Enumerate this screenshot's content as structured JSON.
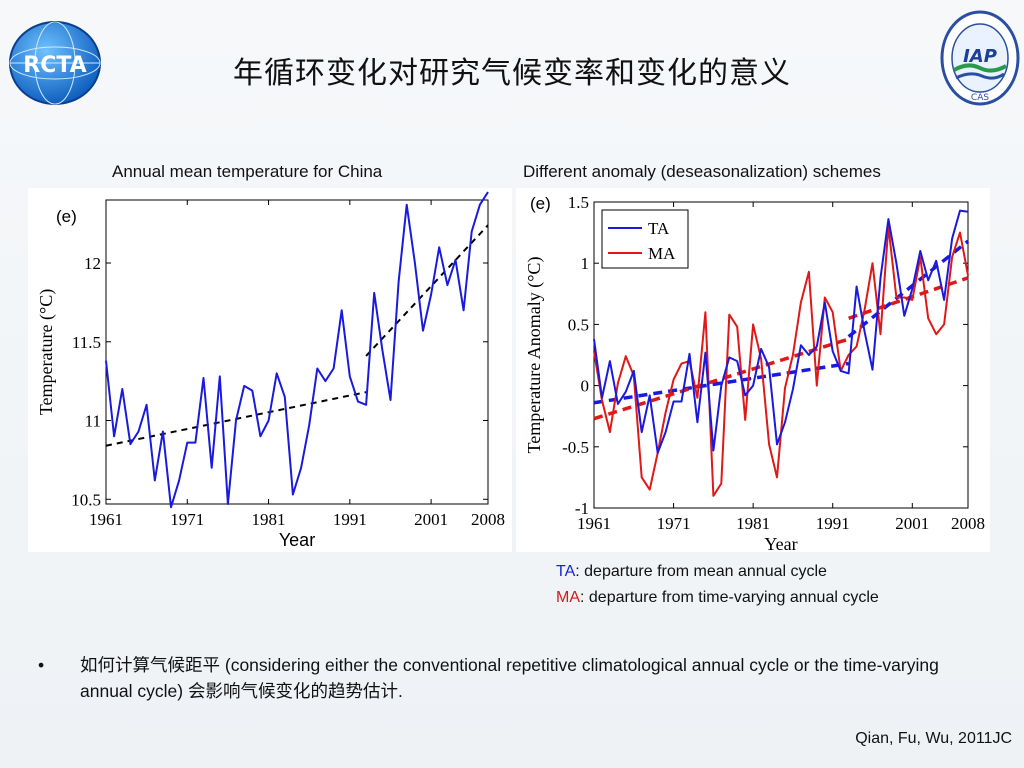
{
  "slide": {
    "title": "年循环变化对研究气候变率和变化的意义",
    "bullet": "如何计算气候距平 (considering either the conventional repetitive climatological annual cycle or the time-varying annual cycle) 会影响气候变化的趋势估计.",
    "citation": "Qian, Fu, Wu, 2011JC",
    "ta_note": {
      "term": "TA",
      "text": ": departure from mean annual cycle"
    },
    "ma_note": {
      "term": "MA",
      "text": ": departure from time-varying annual cycle"
    },
    "logos": {
      "left": "RCTA",
      "right": "IAP",
      "right_ring": "CAS"
    }
  },
  "chart_data": [
    {
      "type": "line",
      "subtitle": "Annual mean temperature for China",
      "panel_label": "(e)",
      "xlabel": "Year",
      "ylabel": "Temperature (°C)",
      "xlim": [
        1961,
        2008
      ],
      "ylim": [
        10.47,
        12.4
      ],
      "xticks": [
        1961,
        1971,
        1981,
        1991,
        2001,
        2008
      ],
      "yticks": [
        10.5,
        11,
        11.5,
        12
      ],
      "ytick_labels": [
        "10.5",
        "11",
        "11.5",
        "12"
      ],
      "color": "#1a1adf",
      "x": [
        1961,
        1962,
        1963,
        1964,
        1965,
        1966,
        1967,
        1968,
        1969,
        1970,
        1971,
        1972,
        1973,
        1974,
        1975,
        1976,
        1977,
        1978,
        1979,
        1980,
        1981,
        1982,
        1983,
        1984,
        1985,
        1986,
        1987,
        1988,
        1989,
        1990,
        1991,
        1992,
        1993,
        1994,
        1995,
        1996,
        1997,
        1998,
        1999,
        2000,
        2001,
        2002,
        2003,
        2004,
        2005,
        2006,
        2007,
        2008
      ],
      "y": [
        11.38,
        10.9,
        11.2,
        10.85,
        10.93,
        11.1,
        10.62,
        10.93,
        10.45,
        10.62,
        10.86,
        10.86,
        11.27,
        10.7,
        11.28,
        10.47,
        11.0,
        11.22,
        11.19,
        10.9,
        11.0,
        11.3,
        11.15,
        10.53,
        10.7,
        10.97,
        11.33,
        11.25,
        11.33,
        11.7,
        11.28,
        11.12,
        11.1,
        11.81,
        11.45,
        11.13,
        11.88,
        12.37,
        12.0,
        11.57,
        11.8,
        12.1,
        11.86,
        12.02,
        11.7,
        12.2,
        12.37,
        12.45
      ],
      "trend_lines": [
        {
          "x": [
            1961,
            1993
          ],
          "y": [
            10.84,
            11.18
          ]
        },
        {
          "x": [
            1993,
            2008
          ],
          "y": [
            11.41,
            12.24
          ]
        }
      ]
    },
    {
      "type": "line",
      "subtitle": "Different anomaly (deseasonalization) schemes",
      "panel_label": "(e)",
      "xlabel": "Year",
      "ylabel": "Temperature Anomaly (°C)",
      "xlim": [
        1961,
        2008
      ],
      "ylim": [
        -1,
        1.5
      ],
      "xticks": [
        1961,
        1971,
        1981,
        1991,
        2001,
        2008
      ],
      "yticks": [
        -1,
        -0.5,
        0,
        0.5,
        1,
        1.5
      ],
      "ytick_labels": [
        "-1",
        "-0.5",
        "0",
        "0.5",
        "1",
        "1.5"
      ],
      "legend": "top-left",
      "x": [
        1961,
        1962,
        1963,
        1964,
        1965,
        1966,
        1967,
        1968,
        1969,
        1970,
        1971,
        1972,
        1973,
        1974,
        1975,
        1976,
        1977,
        1978,
        1979,
        1980,
        1981,
        1982,
        1983,
        1984,
        1985,
        1986,
        1987,
        1988,
        1989,
        1990,
        1991,
        1992,
        1993,
        1994,
        1995,
        1996,
        1997,
        1998,
        1999,
        2000,
        2001,
        2002,
        2003,
        2004,
        2005,
        2006,
        2007,
        2008
      ],
      "series": [
        {
          "name": "TA",
          "color": "#1a1adf",
          "y": [
            0.38,
            -0.1,
            0.2,
            -0.15,
            -0.05,
            0.12,
            -0.38,
            -0.08,
            -0.55,
            -0.38,
            -0.13,
            -0.13,
            0.26,
            -0.3,
            0.27,
            -0.53,
            0.0,
            0.23,
            0.2,
            -0.08,
            0.0,
            0.3,
            0.15,
            -0.48,
            -0.3,
            -0.03,
            0.33,
            0.25,
            0.32,
            0.68,
            0.28,
            0.12,
            0.1,
            0.81,
            0.44,
            0.13,
            0.88,
            1.36,
            1.0,
            0.57,
            0.79,
            1.1,
            0.86,
            1.02,
            0.7,
            1.2,
            1.43,
            1.42
          ]
        },
        {
          "name": "MA",
          "color": "#e01818",
          "y": [
            0.28,
            -0.12,
            -0.38,
            0.02,
            0.24,
            0.08,
            -0.75,
            -0.85,
            -0.55,
            -0.22,
            0.05,
            0.18,
            0.2,
            -0.1,
            0.6,
            -0.9,
            -0.8,
            0.58,
            0.48,
            -0.28,
            0.5,
            0.22,
            -0.48,
            -0.75,
            -0.02,
            0.25,
            0.68,
            0.93,
            0.0,
            0.72,
            0.6,
            0.12,
            0.25,
            0.32,
            0.62,
            1.0,
            0.42,
            1.3,
            0.72,
            0.72,
            0.7,
            1.05,
            0.55,
            0.42,
            0.5,
            1.05,
            1.25,
            0.9
          ]
        }
      ],
      "trend_lines": [
        {
          "series": "TA",
          "x": [
            1961,
            1993
          ],
          "y": [
            -0.14,
            0.18
          ]
        },
        {
          "series": "TA",
          "x": [
            1993,
            2008
          ],
          "y": [
            0.4,
            1.18
          ]
        },
        {
          "series": "MA",
          "x": [
            1961,
            1993
          ],
          "y": [
            -0.27,
            0.38
          ]
        },
        {
          "series": "MA",
          "x": [
            1993,
            2008
          ],
          "y": [
            0.55,
            0.88
          ]
        }
      ]
    }
  ]
}
